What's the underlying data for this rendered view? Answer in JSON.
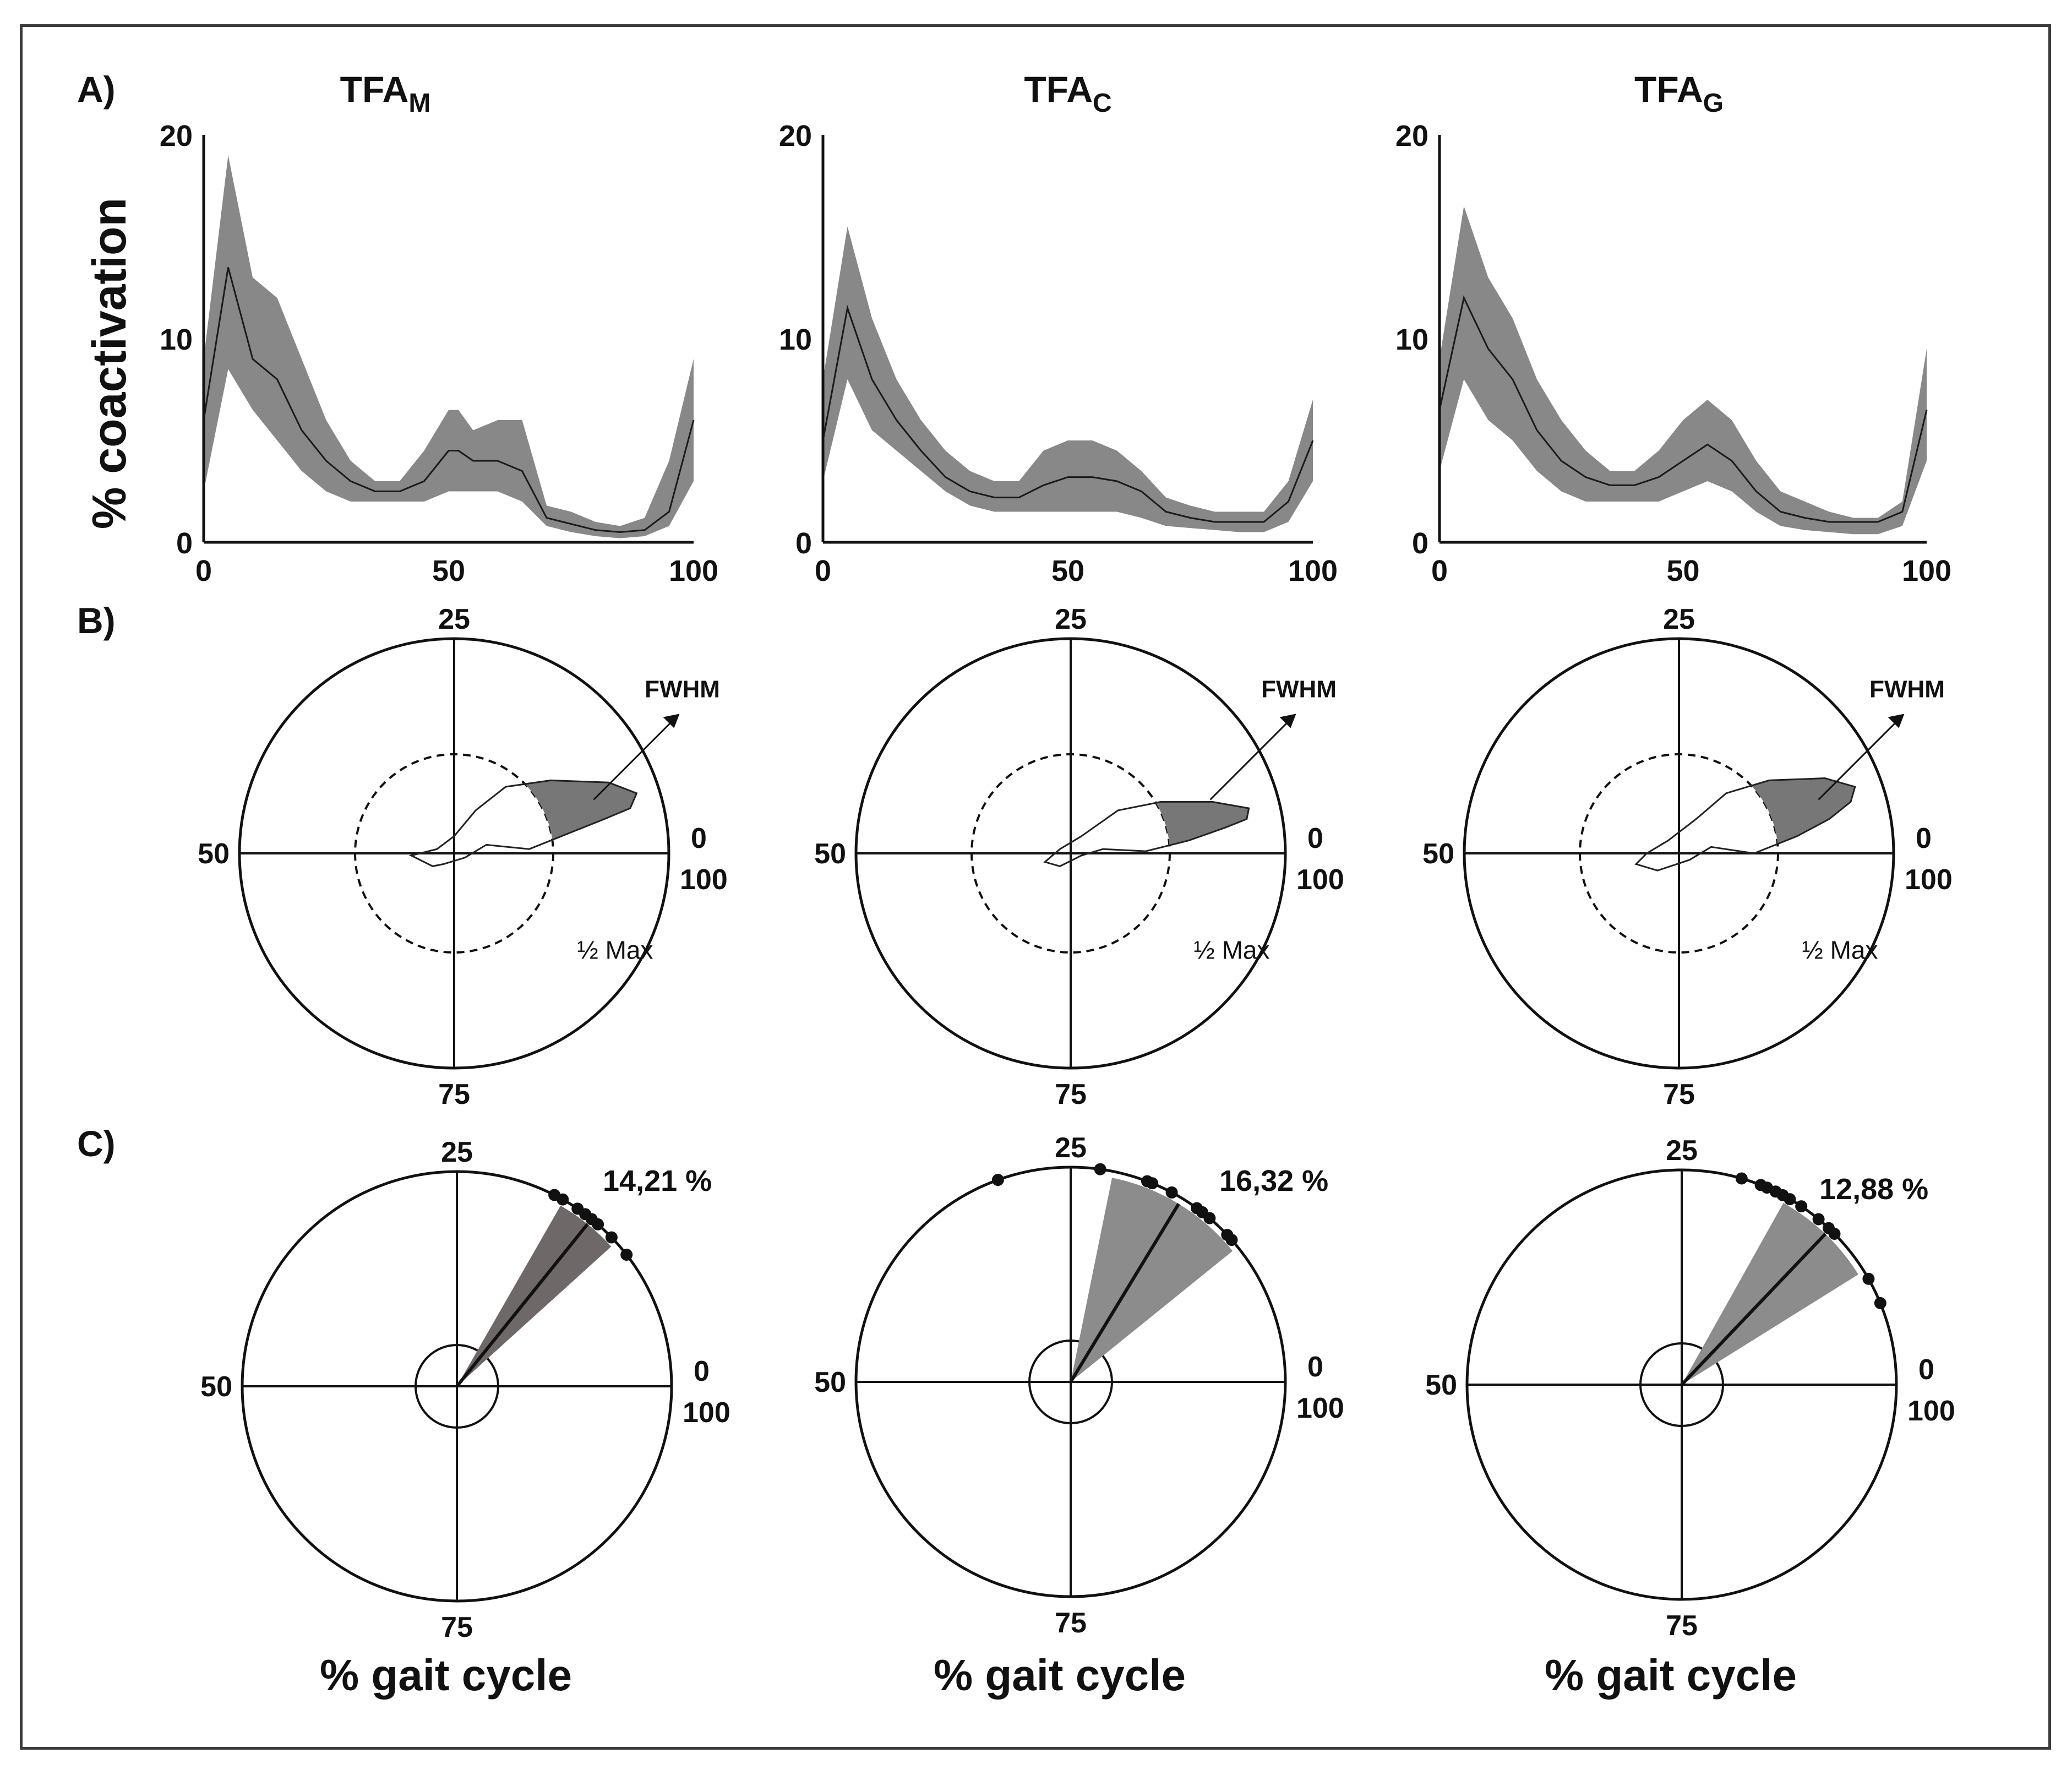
{
  "figure": {
    "panel_labels": [
      "A)",
      "B)",
      "C)"
    ],
    "y_axis_label": "% coactivation",
    "x_axis_label": "% gait cycle",
    "fwhm_label": "FWHM",
    "half_max_label": "½ Max",
    "polar_ticks": {
      "top": "25",
      "left": "50",
      "right_top": "0",
      "right_bottom": "100",
      "bottom": "75"
    }
  },
  "chart_data": [
    {
      "type": "line",
      "title_base": "TFA",
      "title_sub": "M",
      "x": [
        0,
        5,
        10,
        15,
        20,
        25,
        30,
        35,
        40,
        45,
        50,
        52,
        55,
        60,
        65,
        70,
        75,
        80,
        85,
        90,
        95,
        100
      ],
      "y": [
        6,
        13.5,
        9,
        8,
        5.5,
        4,
        3,
        2.5,
        2.5,
        3,
        4.5,
        4.5,
        4,
        4,
        3.5,
        1.2,
        0.9,
        0.6,
        0.5,
        0.6,
        1.5,
        6
      ],
      "band_upper": [
        9,
        19,
        13,
        12,
        9,
        6,
        4,
        3,
        3,
        4.5,
        6.5,
        6.5,
        5.5,
        6,
        6,
        1.8,
        1.5,
        1,
        0.8,
        1.2,
        4,
        9
      ],
      "band_lower": [
        2.5,
        8.5,
        6.5,
        5,
        3.5,
        2.5,
        2,
        2,
        2,
        2,
        2.5,
        2.5,
        2.5,
        2.5,
        2,
        0.8,
        0.5,
        0.3,
        0.2,
        0.3,
        0.8,
        3
      ],
      "x_ticks": [
        "0",
        "50",
        "100"
      ],
      "y_ticks": [
        "0",
        "10",
        "20"
      ],
      "xlim": [
        0,
        100
      ],
      "ylim": [
        0,
        20
      ]
    },
    {
      "type": "line",
      "title_base": "TFA",
      "title_sub": "C",
      "x": [
        0,
        5,
        10,
        15,
        20,
        25,
        30,
        35,
        40,
        45,
        50,
        55,
        60,
        65,
        70,
        75,
        80,
        85,
        90,
        95,
        100
      ],
      "y": [
        5,
        11.5,
        8,
        6,
        4.5,
        3.2,
        2.5,
        2.2,
        2.2,
        2.8,
        3.2,
        3.2,
        3,
        2.5,
        1.5,
        1.2,
        1,
        1,
        1,
        2,
        5
      ],
      "band_upper": [
        8,
        15.5,
        11,
        8,
        6,
        4.5,
        3.5,
        3,
        3,
        4.5,
        5,
        5,
        4.5,
        3.5,
        2.2,
        1.8,
        1.5,
        1.5,
        1.5,
        3,
        7
      ],
      "band_lower": [
        3,
        8,
        5.5,
        4.5,
        3.5,
        2.5,
        1.8,
        1.5,
        1.5,
        1.5,
        1.5,
        1.5,
        1.5,
        1.2,
        0.8,
        0.7,
        0.6,
        0.5,
        0.5,
        1,
        3
      ],
      "x_ticks": [
        "0",
        "50",
        "100"
      ],
      "y_ticks": [
        "0",
        "10",
        "20"
      ],
      "xlim": [
        0,
        100
      ],
      "ylim": [
        0,
        20
      ]
    },
    {
      "type": "line",
      "title_base": "TFA",
      "title_sub": "G",
      "x": [
        0,
        5,
        10,
        15,
        20,
        25,
        30,
        35,
        40,
        45,
        50,
        55,
        60,
        65,
        70,
        75,
        80,
        85,
        90,
        95,
        100
      ],
      "y": [
        6.5,
        12,
        9.5,
        8,
        5.5,
        4,
        3.2,
        2.8,
        2.8,
        3.2,
        4,
        4.8,
        4,
        2.5,
        1.5,
        1.2,
        1,
        1,
        1,
        1.5,
        6.5
      ],
      "band_upper": [
        9,
        16.5,
        13,
        11,
        8,
        6,
        4.5,
        3.5,
        3.5,
        4.5,
        6,
        7,
        6,
        4,
        2.5,
        2,
        1.5,
        1.2,
        1.2,
        2,
        9.5
      ],
      "band_lower": [
        3.5,
        8,
        6,
        5,
        3.5,
        2.5,
        2,
        2,
        2,
        2,
        2.5,
        3,
        2.5,
        1.5,
        0.8,
        0.6,
        0.5,
        0.4,
        0.4,
        0.8,
        4
      ],
      "x_ticks": [
        "0",
        "50",
        "100"
      ],
      "y_ticks": [
        "0",
        "10",
        "20"
      ],
      "xlim": [
        0,
        100
      ],
      "ylim": [
        0,
        20
      ]
    },
    {
      "type": "scatter",
      "description": "polar FWHM center of activity, TFA_M",
      "mean_percent": 14.21,
      "mean_label": "14,21 %",
      "sector_half_width_percent": 2.5,
      "points_percent": [
        17.5,
        16.8,
        15.5,
        14.8,
        14.2,
        13.6,
        12.2,
        10.5
      ]
    },
    {
      "type": "scatter",
      "description": "polar FWHM center of activity, TFA_C",
      "mean_percent": 16.32,
      "mean_label": "16,32 %",
      "sector_half_width_percent": 5.5,
      "points_percent": [
        30.5,
        22.8,
        19.2,
        18.8,
        17.2,
        15.0,
        14.5,
        13.8,
        12.0,
        11.5
      ]
    },
    {
      "type": "scatter",
      "description": "polar FWHM center of activity, TFA_G",
      "mean_percent": 12.88,
      "mean_label": "12,88 %",
      "sector_half_width_percent": 4.0,
      "points_percent": [
        20.5,
        19.0,
        18.5,
        17.8,
        17.2,
        16.6,
        15.6,
        14.0,
        13.0,
        12.4,
        8.2,
        6.2
      ]
    }
  ]
}
